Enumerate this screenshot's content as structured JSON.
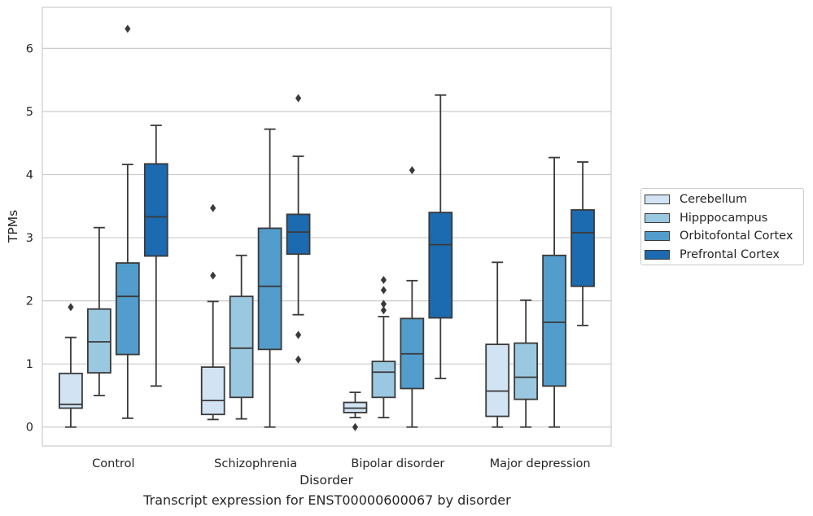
{
  "chart_data": {
    "type": "box",
    "caption": "Transcript expression for ENST00000600067 by disorder",
    "xlabel": "Disorder",
    "ylabel": "TPMs",
    "ylim": [
      -0.3,
      6.65
    ],
    "yticks": [
      0,
      1,
      2,
      3,
      4,
      5,
      6
    ],
    "grid": "horizontal",
    "legend_position": "right",
    "categories": [
      "Control",
      "Schizophrenia",
      "Bipolar disorder",
      "Major depression"
    ],
    "series": [
      {
        "name": "Cerebellum",
        "color": "#d2e3f3",
        "boxes": [
          {
            "whislo": 0.0,
            "q1": 0.3,
            "med": 0.36,
            "q3": 0.85,
            "whishi": 1.42,
            "fliers": [
              1.9
            ]
          },
          {
            "whislo": 0.12,
            "q1": 0.2,
            "med": 0.42,
            "q3": 0.95,
            "whishi": 1.99,
            "fliers": [
              2.4,
              3.47
            ]
          },
          {
            "whislo": 0.15,
            "q1": 0.23,
            "med": 0.3,
            "q3": 0.39,
            "whishi": 0.55,
            "fliers": [
              0.0
            ]
          },
          {
            "whislo": 0.0,
            "q1": 0.17,
            "med": 0.57,
            "q3": 1.31,
            "whishi": 2.61,
            "fliers": []
          }
        ]
      },
      {
        "name": "Hipppocampus",
        "color": "#9ac8e0",
        "boxes": [
          {
            "whislo": 0.5,
            "q1": 0.86,
            "med": 1.35,
            "q3": 1.87,
            "whishi": 3.16,
            "fliers": []
          },
          {
            "whislo": 0.13,
            "q1": 0.47,
            "med": 1.25,
            "q3": 2.07,
            "whishi": 2.72,
            "fliers": []
          },
          {
            "whislo": 0.15,
            "q1": 0.47,
            "med": 0.87,
            "q3": 1.04,
            "whishi": 1.75,
            "fliers": [
              1.85,
              1.95,
              2.17,
              2.33
            ]
          },
          {
            "whislo": 0.0,
            "q1": 0.44,
            "med": 0.79,
            "q3": 1.33,
            "whishi": 2.01,
            "fliers": []
          }
        ]
      },
      {
        "name": "Orbitofontal Cortex",
        "color": "#529dcc",
        "boxes": [
          {
            "whislo": 0.14,
            "q1": 1.15,
            "med": 2.07,
            "q3": 2.6,
            "whishi": 4.16,
            "fliers": [
              6.31
            ]
          },
          {
            "whislo": 0.0,
            "q1": 1.23,
            "med": 2.23,
            "q3": 3.15,
            "whishi": 4.72,
            "fliers": []
          },
          {
            "whislo": 0.0,
            "q1": 0.61,
            "med": 1.16,
            "q3": 1.72,
            "whishi": 2.32,
            "fliers": [
              4.07
            ]
          },
          {
            "whislo": 0.0,
            "q1": 0.65,
            "med": 1.66,
            "q3": 2.72,
            "whishi": 4.27,
            "fliers": []
          }
        ]
      },
      {
        "name": "Prefrontal Cortex",
        "color": "#1c6aaf",
        "boxes": [
          {
            "whislo": 0.65,
            "q1": 2.71,
            "med": 3.33,
            "q3": 4.17,
            "whishi": 4.78,
            "fliers": []
          },
          {
            "whislo": 1.78,
            "q1": 2.74,
            "med": 3.09,
            "q3": 3.37,
            "whishi": 4.29,
            "fliers": [
              1.07,
              1.46,
              5.21
            ]
          },
          {
            "whislo": 0.77,
            "q1": 1.73,
            "med": 2.89,
            "q3": 3.4,
            "whishi": 5.26,
            "fliers": []
          },
          {
            "whislo": 1.61,
            "q1": 2.23,
            "med": 3.08,
            "q3": 3.44,
            "whishi": 4.2,
            "fliers": []
          }
        ]
      }
    ]
  }
}
